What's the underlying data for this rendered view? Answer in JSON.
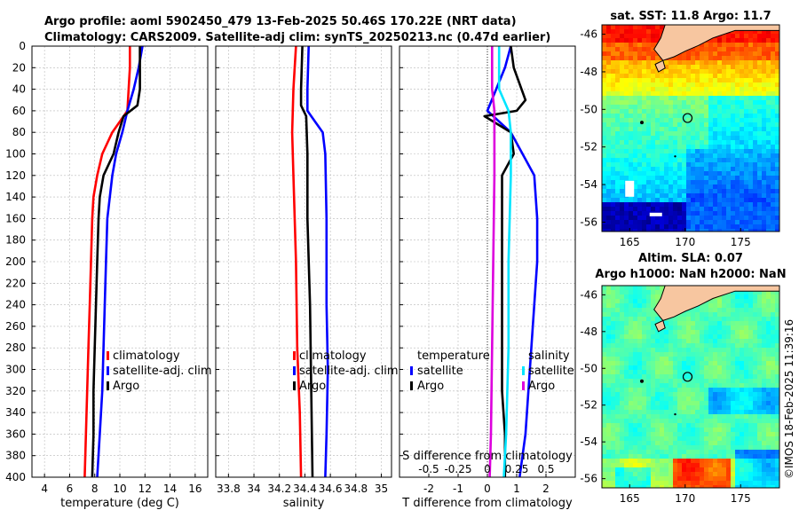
{
  "title": {
    "line1": "Argo profile: aoml 5902450_479 13-Feb-2025 50.46S 170.22E (NRT data)",
    "line2": "Climatology: CARS2009. Satellite-adj clim: synTS_20250213.nc (0.47d earlier)"
  },
  "depth_ticks": [
    0,
    20,
    40,
    60,
    80,
    100,
    120,
    140,
    160,
    180,
    200,
    220,
    240,
    260,
    280,
    300,
    320,
    340,
    360,
    380,
    400
  ],
  "colors": {
    "climatology": "#ff0000",
    "satellite": "#0000ff",
    "argo": "#000000",
    "salinity_sat": "#00e5ff",
    "salinity_argo": "#dd00dd",
    "land": "#f7c6a0",
    "grid": "#b8b8b8"
  },
  "chart_data": [
    {
      "type": "line",
      "id": "temperature",
      "xlabel": "temperature (deg C)",
      "ylabel": "",
      "xlim": [
        3,
        17
      ],
      "ylim": [
        400,
        0
      ],
      "xticks": [
        4,
        6,
        8,
        10,
        12,
        14,
        16
      ],
      "xticklabels": [
        "4",
        "6",
        "8",
        "10",
        "12",
        "14",
        "16"
      ],
      "legend": [
        "climatology",
        "satellite-adj. clim",
        "Argo"
      ],
      "series": [
        {
          "name": "climatology",
          "color": "#ff0000",
          "points": [
            [
              10.8,
              0
            ],
            [
              10.8,
              20
            ],
            [
              10.7,
              40
            ],
            [
              10.6,
              60
            ],
            [
              9.4,
              80
            ],
            [
              8.6,
              100
            ],
            [
              8.2,
              120
            ],
            [
              7.9,
              140
            ],
            [
              7.8,
              160
            ],
            [
              7.7,
              200
            ],
            [
              7.6,
              240
            ],
            [
              7.5,
              280
            ],
            [
              7.4,
              320
            ],
            [
              7.3,
              360
            ],
            [
              7.2,
              400
            ]
          ]
        },
        {
          "name": "satellite-adj. clim",
          "color": "#0000ff",
          "points": [
            [
              11.8,
              0
            ],
            [
              11.5,
              20
            ],
            [
              11.1,
              40
            ],
            [
              10.6,
              60
            ],
            [
              10.2,
              80
            ],
            [
              9.7,
              100
            ],
            [
              9.4,
              120
            ],
            [
              9.2,
              140
            ],
            [
              9.0,
              160
            ],
            [
              8.9,
              200
            ],
            [
              8.8,
              240
            ],
            [
              8.7,
              280
            ],
            [
              8.6,
              320
            ],
            [
              8.4,
              360
            ],
            [
              8.2,
              400
            ]
          ]
        },
        {
          "name": "Argo",
          "color": "#000000",
          "points": [
            [
              11.6,
              0
            ],
            [
              11.6,
              20
            ],
            [
              11.6,
              40
            ],
            [
              11.4,
              55
            ],
            [
              10.3,
              65
            ],
            [
              9.9,
              80
            ],
            [
              9.5,
              100
            ],
            [
              8.7,
              120
            ],
            [
              8.4,
              140
            ],
            [
              8.3,
              160
            ],
            [
              8.2,
              200
            ],
            [
              8.1,
              240
            ],
            [
              8.0,
              280
            ],
            [
              7.9,
              320
            ],
            [
              7.9,
              360
            ],
            [
              7.8,
              400
            ]
          ]
        }
      ]
    },
    {
      "type": "line",
      "id": "salinity",
      "xlabel": "salinity",
      "ylabel": "",
      "xlim": [
        33.7,
        35.08
      ],
      "ylim": [
        400,
        0
      ],
      "xticks": [
        33.8,
        34.0,
        34.2,
        34.4,
        34.6,
        34.8,
        35.0
      ],
      "xticklabels": [
        "33.8",
        "34",
        "34.2",
        "34.4",
        "34.6",
        "34.8",
        "35"
      ],
      "legend": [
        "climatology",
        "satellite-adj. clim",
        "Argo"
      ],
      "series": [
        {
          "name": "climatology",
          "color": "#ff0000",
          "points": [
            [
              34.33,
              0
            ],
            [
              34.31,
              40
            ],
            [
              34.3,
              80
            ],
            [
              34.31,
              120
            ],
            [
              34.33,
              200
            ],
            [
              34.34,
              280
            ],
            [
              34.36,
              340
            ],
            [
              34.37,
              400
            ]
          ]
        },
        {
          "name": "satellite-adj. clim",
          "color": "#0000ff",
          "points": [
            [
              34.43,
              0
            ],
            [
              34.42,
              40
            ],
            [
              34.42,
              60
            ],
            [
              34.48,
              70
            ],
            [
              34.54,
              80
            ],
            [
              34.56,
              100
            ],
            [
              34.57,
              160
            ],
            [
              34.57,
              240
            ],
            [
              34.58,
              300
            ],
            [
              34.57,
              360
            ],
            [
              34.56,
              400
            ]
          ]
        },
        {
          "name": "Argo",
          "color": "#000000",
          "points": [
            [
              34.38,
              0
            ],
            [
              34.37,
              40
            ],
            [
              34.37,
              55
            ],
            [
              34.41,
              65
            ],
            [
              34.42,
              100
            ],
            [
              34.42,
              160
            ],
            [
              34.44,
              240
            ],
            [
              34.45,
              320
            ],
            [
              34.46,
              400
            ]
          ]
        }
      ]
    },
    {
      "type": "line",
      "id": "difference",
      "xlabel": "T difference from climatology",
      "x2label": "S difference from climatology",
      "ylabel": "",
      "xlim": [
        -3,
        3
      ],
      "ylim": [
        400,
        0
      ],
      "xticks": [
        -2,
        -1,
        0,
        1,
        2
      ],
      "xticklabels": [
        "-2",
        "-1",
        "0",
        "1",
        "2"
      ],
      "x2ticks": [
        -0.5,
        -0.25,
        0,
        0.25,
        0.5
      ],
      "x2ticklabels": [
        "-0.5",
        "-0.25",
        "0",
        "0.25",
        "0.5"
      ],
      "s_scale": 4,
      "legend_left_title": "temperature",
      "legend_right_title": "salinity",
      "legend": [
        "satellite",
        "Argo"
      ],
      "series": [
        {
          "name": "T satellite",
          "color": "#0000ff",
          "points": [
            [
              0.8,
              0
            ],
            [
              0.6,
              20
            ],
            [
              0.3,
              40
            ],
            [
              0.0,
              60
            ],
            [
              0.8,
              80
            ],
            [
              1.2,
              100
            ],
            [
              1.6,
              120
            ],
            [
              1.7,
              160
            ],
            [
              1.7,
              200
            ],
            [
              1.6,
              240
            ],
            [
              1.5,
              280
            ],
            [
              1.4,
              320
            ],
            [
              1.3,
              360
            ],
            [
              1.1,
              400
            ]
          ]
        },
        {
          "name": "T Argo",
          "color": "#000000",
          "points": [
            [
              0.8,
              0
            ],
            [
              0.9,
              20
            ],
            [
              1.3,
              50
            ],
            [
              1.0,
              60
            ],
            [
              -0.1,
              65
            ],
            [
              0.8,
              80
            ],
            [
              0.9,
              100
            ],
            [
              0.5,
              120
            ],
            [
              0.5,
              140
            ],
            [
              0.5,
              200
            ],
            [
              0.5,
              280
            ],
            [
              0.5,
              320
            ],
            [
              0.6,
              360
            ],
            [
              0.6,
              400
            ]
          ]
        },
        {
          "name": "S satellite",
          "color": "#00e5ff",
          "points": [
            [
              0.1,
              0
            ],
            [
              0.1,
              40
            ],
            [
              0.18,
              60
            ],
            [
              0.2,
              80
            ],
            [
              0.2,
              120
            ],
            [
              0.18,
              200
            ],
            [
              0.18,
              280
            ],
            [
              0.16,
              360
            ],
            [
              0.14,
              400
            ]
          ]
        },
        {
          "name": "S Argo",
          "color": "#dd00dd",
          "points": [
            [
              0.04,
              0
            ],
            [
              0.04,
              40
            ],
            [
              0.06,
              60
            ],
            [
              0.06,
              80
            ],
            [
              0.06,
              120
            ],
            [
              0.05,
              200
            ],
            [
              0.04,
              280
            ],
            [
              0.03,
              360
            ],
            [
              0.02,
              400
            ]
          ]
        }
      ]
    },
    {
      "type": "heatmap",
      "id": "sst_map",
      "title": "sat. SST: 11.8 Argo: 11.7",
      "xlim": [
        162.5,
        178.5
      ],
      "ylim": [
        -56.5,
        -45.5
      ],
      "xticks": [
        165,
        170,
        175
      ],
      "xticklabels": [
        "165",
        "170",
        "175"
      ],
      "yticks": [
        -46,
        -48,
        -50,
        -52,
        -54,
        -56
      ],
      "yticklabels": [
        "-46",
        "-48",
        "-50",
        "-52",
        "-54",
        "-56"
      ],
      "marker": {
        "lon": 170.22,
        "lat": -50.46
      }
    },
    {
      "type": "heatmap",
      "id": "sla_map",
      "title": "Altim. SLA: 0.07",
      "subtitle": "Argo h1000: NaN h2000: NaN",
      "xlim": [
        162.5,
        178.5
      ],
      "ylim": [
        -56.5,
        -45.5
      ],
      "xticks": [
        165,
        170,
        175
      ],
      "xticklabels": [
        "165",
        "170",
        "175"
      ],
      "yticks": [
        -46,
        -48,
        -50,
        -52,
        -54,
        -56
      ],
      "yticklabels": [
        "-46",
        "-48",
        "-50",
        "-52",
        "-54",
        "-56"
      ],
      "marker": {
        "lon": 170.22,
        "lat": -50.46
      }
    }
  ],
  "credit": "©IMOS 18-Feb-2025 11:39:16"
}
